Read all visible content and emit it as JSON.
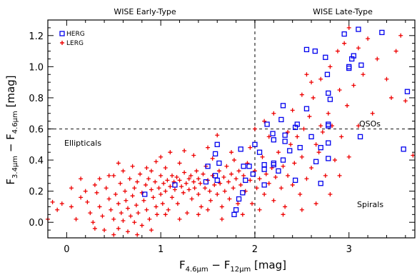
{
  "chart_data": {
    "type": "scatter",
    "xlim": [
      -0.2,
      3.7
    ],
    "ylim": [
      -0.1,
      1.3
    ],
    "xticks": [
      "0",
      "1",
      "2",
      "3"
    ],
    "yticks": [
      "0.0",
      "0.2",
      "0.4",
      "0.6",
      "0.8",
      "1.0",
      "1.2"
    ],
    "xticks_values": [
      0,
      1,
      2,
      3
    ],
    "yticks_values": [
      0.0,
      0.2,
      0.4,
      0.6,
      0.8,
      1.0,
      1.2
    ],
    "xlabel": {
      "main": "F",
      "sub1": "4.6μm",
      "mid": " − F",
      "sub2": "12μm",
      "tail": " [mag]"
    },
    "ylabel": {
      "main": "F",
      "sub1": "3.4μm",
      "mid": " − F",
      "sub2": "4.6μm",
      "tail": " [mag]"
    },
    "top_labels": [
      "WISE Early-Type",
      "WISE Late-Type"
    ],
    "region_labels": [
      "Ellipticals",
      "QSOs",
      "Spirals"
    ],
    "dividers": {
      "x": 2.0,
      "y": 0.6
    },
    "legend": {
      "position": "top-left",
      "entries": [
        "HERG",
        "LERG"
      ]
    },
    "colors": {
      "HERG": "#0000ee",
      "LERG": "#ee0000"
    },
    "series": [
      {
        "name": "HERG",
        "marker": "square",
        "points": [
          [
            3.1,
            1.24
          ],
          [
            3.35,
            1.22
          ],
          [
            2.95,
            1.21
          ],
          [
            2.55,
            1.11
          ],
          [
            2.75,
            1.06
          ],
          [
            3.03,
            1.05
          ],
          [
            3.05,
            1.07
          ],
          [
            3.13,
            1.01
          ],
          [
            3.0,
            1.0
          ],
          [
            3.0,
            0.99
          ],
          [
            2.64,
            1.1
          ],
          [
            2.77,
            0.95
          ],
          [
            2.78,
            0.83
          ],
          [
            2.8,
            0.79
          ],
          [
            3.62,
            0.84
          ],
          [
            2.3,
            0.75
          ],
          [
            2.55,
            0.73
          ],
          [
            2.28,
            0.66
          ],
          [
            2.13,
            0.63
          ],
          [
            2.45,
            0.63
          ],
          [
            2.78,
            0.63
          ],
          [
            2.78,
            0.62
          ],
          [
            2.43,
            0.61
          ],
          [
            2.19,
            0.57
          ],
          [
            2.32,
            0.56
          ],
          [
            2.6,
            0.55
          ],
          [
            2.2,
            0.53
          ],
          [
            2.32,
            0.52
          ],
          [
            2.0,
            0.5
          ],
          [
            3.12,
            0.55
          ],
          [
            2.78,
            0.51
          ],
          [
            1.85,
            0.47
          ],
          [
            2.05,
            0.45
          ],
          [
            2.48,
            0.48
          ],
          [
            2.7,
            0.48
          ],
          [
            3.58,
            0.47
          ],
          [
            1.6,
            0.5
          ],
          [
            1.58,
            0.44
          ],
          [
            2.37,
            0.46
          ],
          [
            2.2,
            0.38
          ],
          [
            2.1,
            0.37
          ],
          [
            2.2,
            0.37
          ],
          [
            2.3,
            0.4
          ],
          [
            2.65,
            0.39
          ],
          [
            2.78,
            0.41
          ],
          [
            1.5,
            0.36
          ],
          [
            1.62,
            0.38
          ],
          [
            1.88,
            0.36
          ],
          [
            2.1,
            0.34
          ],
          [
            2.25,
            0.33
          ],
          [
            1.98,
            0.31
          ],
          [
            1.58,
            0.3
          ],
          [
            2.43,
            0.27
          ],
          [
            2.7,
            0.25
          ],
          [
            2.1,
            0.24
          ],
          [
            1.15,
            0.24
          ],
          [
            1.48,
            0.26
          ],
          [
            1.6,
            0.27
          ],
          [
            1.9,
            0.27
          ],
          [
            1.87,
            0.19
          ],
          [
            0.83,
            0.18
          ],
          [
            1.83,
            0.15
          ],
          [
            1.8,
            0.08
          ],
          [
            1.78,
            0.05
          ],
          [
            1.94,
            0.36
          ]
        ]
      },
      {
        "name": "LERG",
        "marker": "plus",
        "points": [
          [
            -0.15,
            0.13
          ],
          [
            -0.1,
            0.08
          ],
          [
            -0.05,
            0.12
          ],
          [
            -0.2,
            0.02
          ],
          [
            0.05,
            0.1
          ],
          [
            0.1,
            0.02
          ],
          [
            0.15,
            0.16
          ],
          [
            0.2,
            0.2
          ],
          [
            0.22,
            0.13
          ],
          [
            0.25,
            0.06
          ],
          [
            0.28,
            0.0
          ],
          [
            0.3,
            0.24
          ],
          [
            0.32,
            0.19
          ],
          [
            0.35,
            0.1
          ],
          [
            0.38,
            0.04
          ],
          [
            0.4,
            -0.05
          ],
          [
            0.42,
            0.22
          ],
          [
            0.45,
            0.15
          ],
          [
            0.47,
            0.08
          ],
          [
            0.5,
            0.3
          ],
          [
            0.5,
            0.02
          ],
          [
            0.52,
            0.18
          ],
          [
            0.55,
            0.12
          ],
          [
            0.55,
            -0.04
          ],
          [
            0.57,
            0.25
          ],
          [
            0.58,
            0.06
          ],
          [
            0.6,
            0.01
          ],
          [
            0.62,
            0.2
          ],
          [
            0.63,
            0.14
          ],
          [
            0.65,
            0.09
          ],
          [
            0.65,
            -0.06
          ],
          [
            0.67,
            0.28
          ],
          [
            0.68,
            0.04
          ],
          [
            0.7,
            0.17
          ],
          [
            0.72,
            0.22
          ],
          [
            0.72,
            0.0
          ],
          [
            0.74,
            0.11
          ],
          [
            0.75,
            0.26
          ],
          [
            0.76,
            0.06
          ],
          [
            0.78,
            0.31
          ],
          [
            0.8,
            0.19
          ],
          [
            0.8,
            -0.02
          ],
          [
            0.82,
            0.14
          ],
          [
            0.84,
            0.24
          ],
          [
            0.85,
            0.08
          ],
          [
            0.87,
            0.28
          ],
          [
            0.88,
            0.02
          ],
          [
            0.9,
            0.21
          ],
          [
            0.9,
            0.33
          ],
          [
            0.92,
            0.16
          ],
          [
            0.94,
            0.26
          ],
          [
            0.95,
            0.1
          ],
          [
            0.96,
            0.05
          ],
          [
            0.98,
            0.22
          ],
          [
            1.0,
            0.3
          ],
          [
            1.0,
            0.18
          ],
          [
            1.02,
            0.12
          ],
          [
            1.03,
            0.25
          ],
          [
            1.05,
            0.35
          ],
          [
            1.05,
            0.2
          ],
          [
            1.07,
            0.27
          ],
          [
            1.08,
            0.08
          ],
          [
            1.1,
            0.23
          ],
          [
            1.12,
            0.16
          ],
          [
            1.12,
            0.3
          ],
          [
            1.14,
            0.26
          ],
          [
            1.15,
            0.21
          ],
          [
            1.17,
            0.29
          ],
          [
            1.18,
            0.12
          ],
          [
            1.2,
            0.27
          ],
          [
            1.2,
            0.38
          ],
          [
            1.22,
            0.23
          ],
          [
            1.24,
            0.19
          ],
          [
            1.25,
            0.32
          ],
          [
            1.27,
            0.25
          ],
          [
            1.28,
            0.06
          ],
          [
            1.3,
            0.28
          ],
          [
            1.3,
            0.21
          ],
          [
            1.32,
            0.3
          ],
          [
            1.33,
            0.15
          ],
          [
            1.35,
            0.26
          ],
          [
            1.36,
            0.22
          ],
          [
            1.38,
            0.33
          ],
          [
            1.4,
            0.28
          ],
          [
            1.4,
            0.18
          ],
          [
            1.42,
            0.25
          ],
          [
            1.43,
            0.1
          ],
          [
            1.45,
            0.31
          ],
          [
            1.47,
            0.22
          ],
          [
            1.48,
            0.36
          ],
          [
            1.5,
            0.27
          ],
          [
            1.52,
            0.2
          ],
          [
            1.53,
            0.14
          ],
          [
            1.55,
            0.3
          ],
          [
            1.55,
            0.41
          ],
          [
            1.57,
            0.24
          ],
          [
            1.6,
            0.18
          ],
          [
            1.62,
            0.33
          ],
          [
            1.63,
            0.25
          ],
          [
            1.65,
            0.1
          ],
          [
            1.67,
            0.29
          ],
          [
            1.68,
            0.2
          ],
          [
            1.7,
            0.36
          ],
          [
            1.72,
            0.26
          ],
          [
            1.73,
            0.15
          ],
          [
            1.75,
            0.31
          ],
          [
            1.77,
            0.22
          ],
          [
            1.78,
            0.4
          ],
          [
            1.8,
            0.28
          ],
          [
            1.82,
            0.12
          ],
          [
            1.83,
            0.33
          ],
          [
            1.85,
            0.24
          ],
          [
            1.87,
            0.05
          ],
          [
            1.88,
            0.3
          ],
          [
            1.9,
            0.2
          ],
          [
            1.92,
            0.38
          ],
          [
            1.95,
            0.27
          ],
          [
            1.97,
            0.12
          ],
          [
            2.0,
            0.33
          ],
          [
            2.02,
            0.22
          ],
          [
            2.05,
            0.28
          ],
          [
            2.08,
            0.42
          ],
          [
            2.1,
            0.18
          ],
          [
            2.12,
            0.31
          ],
          [
            2.15,
            0.25
          ],
          [
            2.18,
            0.35
          ],
          [
            2.2,
            0.14
          ],
          [
            2.22,
            0.29
          ],
          [
            2.25,
            0.45
          ],
          [
            2.28,
            0.22
          ],
          [
            2.3,
            0.36
          ],
          [
            2.32,
            0.1
          ],
          [
            2.35,
            0.3
          ],
          [
            2.38,
            0.5
          ],
          [
            2.4,
            0.24
          ],
          [
            2.42,
            0.38
          ],
          [
            2.45,
            0.55
          ],
          [
            2.48,
            0.18
          ],
          [
            2.5,
            0.42
          ],
          [
            2.52,
            0.6
          ],
          [
            2.55,
            0.28
          ],
          [
            2.58,
            0.68
          ],
          [
            2.6,
            0.35
          ],
          [
            2.62,
            0.8
          ],
          [
            2.65,
            0.5
          ],
          [
            2.68,
            0.45
          ],
          [
            2.7,
            0.92
          ],
          [
            2.72,
            0.58
          ],
          [
            2.75,
            0.3
          ],
          [
            2.78,
            0.7
          ],
          [
            2.8,
            1.0
          ],
          [
            2.82,
            0.62
          ],
          [
            2.85,
            0.4
          ],
          [
            2.88,
            1.1
          ],
          [
            2.9,
            0.85
          ],
          [
            2.92,
            0.55
          ],
          [
            2.95,
            1.15
          ],
          [
            2.98,
            0.75
          ],
          [
            3.0,
            1.25
          ],
          [
            3.05,
            0.88
          ],
          [
            3.1,
            1.12
          ],
          [
            3.15,
            0.95
          ],
          [
            3.2,
            1.18
          ],
          [
            3.3,
            1.05
          ],
          [
            3.4,
            0.92
          ],
          [
            3.5,
            1.1
          ],
          [
            3.6,
            0.78
          ],
          [
            3.68,
            0.43
          ],
          [
            1.0,
            0.42
          ],
          [
            0.95,
            0.39
          ],
          [
            1.1,
            0.45
          ],
          [
            1.25,
            0.46
          ],
          [
            1.35,
            0.43
          ],
          [
            0.85,
            0.35
          ],
          [
            0.6,
            0.33
          ],
          [
            0.45,
            0.3
          ],
          [
            0.35,
            0.28
          ],
          [
            0.15,
            0.28
          ],
          [
            0.05,
            0.22
          ],
          [
            0.7,
            0.36
          ],
          [
            0.55,
            0.38
          ],
          [
            1.5,
            0.48
          ],
          [
            1.6,
            0.56
          ],
          [
            2.1,
            0.65
          ],
          [
            2.2,
            0.7
          ],
          [
            2.4,
            0.72
          ],
          [
            2.5,
            0.82
          ],
          [
            2.6,
            0.9
          ],
          [
            2.55,
            0.95
          ],
          [
            2.7,
            0.62
          ],
          [
            2.35,
            0.58
          ],
          [
            2.15,
            0.55
          ],
          [
            2.0,
            0.6
          ],
          [
            1.95,
            0.48
          ],
          [
            1.75,
            0.45
          ],
          [
            1.05,
            0.05
          ],
          [
            0.75,
            -0.08
          ],
          [
            0.9,
            -0.05
          ],
          [
            0.5,
            -0.08
          ],
          [
            0.3,
            -0.04
          ],
          [
            1.2,
            0.02
          ],
          [
            1.4,
            0.05
          ],
          [
            1.5,
            0.08
          ],
          [
            1.65,
            0.02
          ],
          [
            2.05,
            0.08
          ],
          [
            2.3,
            0.05
          ],
          [
            2.5,
            0.08
          ],
          [
            2.65,
            0.12
          ],
          [
            2.8,
            0.18
          ],
          [
            2.9,
            0.3
          ],
          [
            3.0,
            0.42
          ],
          [
            3.1,
            0.62
          ],
          [
            3.25,
            0.7
          ],
          [
            3.45,
            0.8
          ],
          [
            3.55,
            1.2
          ]
        ]
      }
    ]
  }
}
